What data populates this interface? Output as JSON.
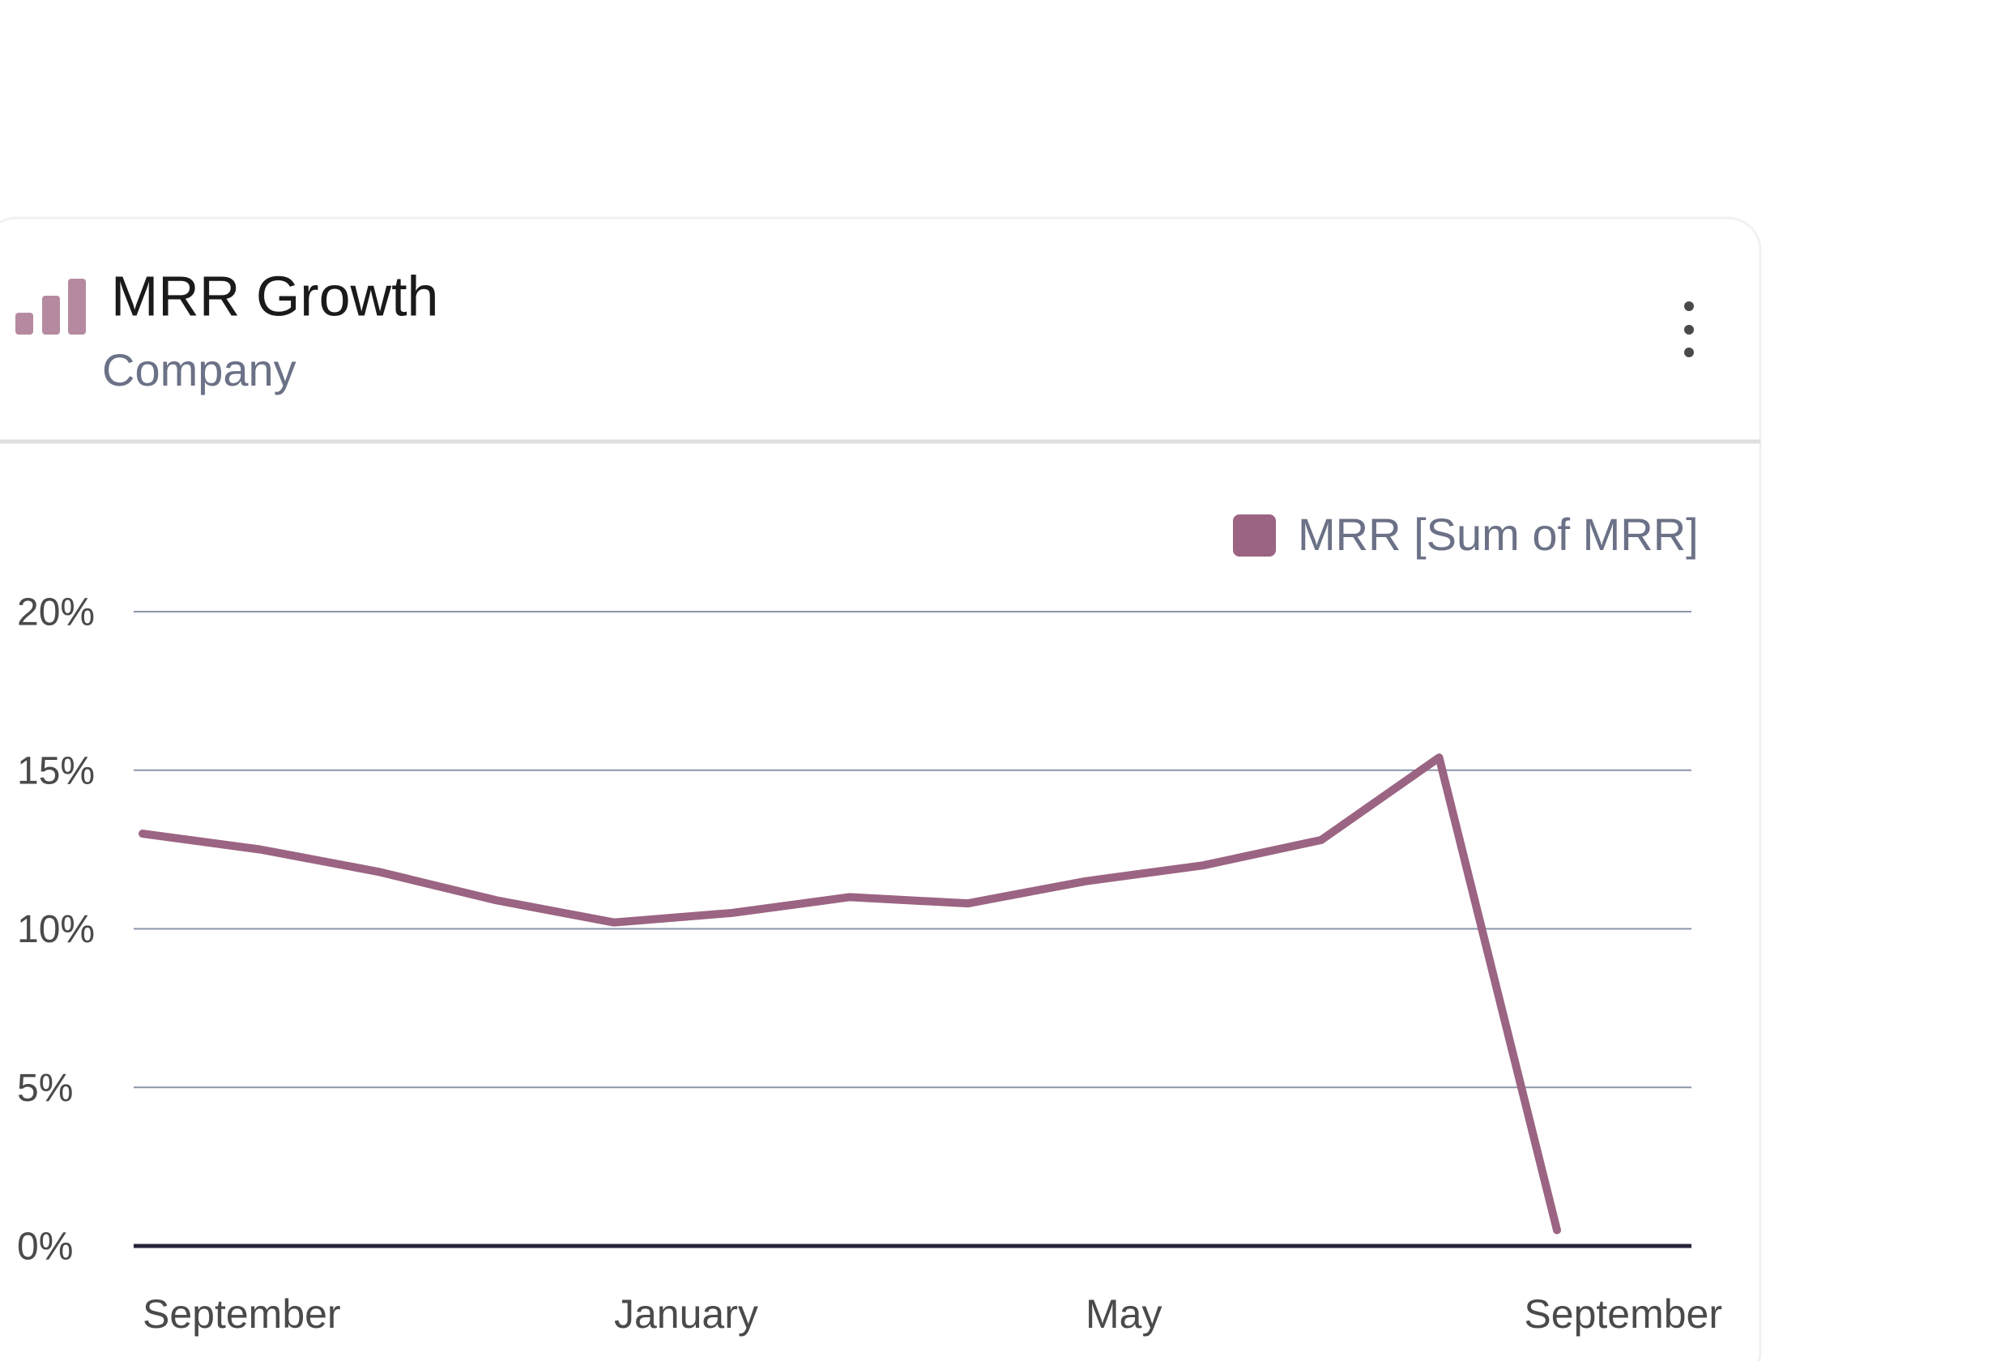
{
  "chart_data": {
    "type": "line",
    "title": "MRR Growth",
    "subtitle": "Company",
    "categories": [
      "September",
      null,
      null,
      null,
      "January",
      null,
      null,
      null,
      "May",
      null,
      null,
      null,
      "September"
    ],
    "series": [
      {
        "name": "MRR [Sum of MRR]",
        "color": "#9b6482",
        "values": [
          13.0,
          12.5,
          11.8,
          10.9,
          10.2,
          10.5,
          11.0,
          10.8,
          11.5,
          12.0,
          12.8,
          15.4,
          0.5
        ]
      }
    ],
    "ylim": [
      0,
      20
    ],
    "yticks": [
      {
        "value": 0,
        "label": "0%"
      },
      {
        "value": 5,
        "label": "5%"
      },
      {
        "value": 10,
        "label": "10%"
      },
      {
        "value": 15,
        "label": "15%"
      },
      {
        "value": 20,
        "label": "20%"
      }
    ],
    "grid": true,
    "legend": "top-right"
  }
}
